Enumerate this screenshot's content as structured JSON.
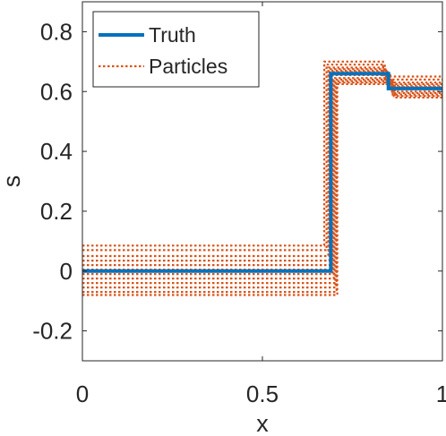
{
  "chart_data": {
    "type": "line",
    "title": "",
    "xlabel": "x",
    "ylabel": "s",
    "xlim": [
      0,
      1
    ],
    "ylim": [
      -0.3,
      0.9
    ],
    "x_ticks": [
      0,
      0.5,
      1
    ],
    "x_tick_labels": [
      "0",
      "0.5",
      "1"
    ],
    "y_ticks": [
      -0.2,
      0,
      0.2,
      0.4,
      0.6,
      0.8
    ],
    "y_tick_labels": [
      "-0.2",
      "0",
      "0.2",
      "0.4",
      "0.6",
      "0.8"
    ],
    "grid": false,
    "legend_position": "top-left",
    "legend": [
      {
        "label": "Truth",
        "style": "solid",
        "color": "#0072BD"
      },
      {
        "label": "Particles",
        "style": "dotted",
        "color": "#D95319"
      }
    ],
    "truth": {
      "name": "Truth",
      "color": "#0072BD",
      "x": [
        0,
        0.69,
        0.69,
        0.85,
        0.85,
        1
      ],
      "y": [
        0,
        0,
        0.66,
        0.66,
        0.61,
        0.61
      ]
    },
    "particles": {
      "name": "Particles",
      "color": "#D95319",
      "series": [
        {
          "x": [
            0,
            0.672,
            0.672,
            0.835,
            0.835,
            1
          ],
          "y": [
            0.085,
            0.085,
            0.7,
            0.7,
            0.65,
            0.65
          ]
        },
        {
          "x": [
            0,
            0.678,
            0.678,
            0.84,
            0.84,
            1
          ],
          "y": [
            0.07,
            0.07,
            0.69,
            0.69,
            0.64,
            0.64
          ]
        },
        {
          "x": [
            0,
            0.683,
            0.683,
            0.842,
            0.842,
            1
          ],
          "y": [
            0.05,
            0.05,
            0.68,
            0.68,
            0.63,
            0.63
          ]
        },
        {
          "x": [
            0,
            0.686,
            0.686,
            0.845,
            0.845,
            1
          ],
          "y": [
            0.035,
            0.035,
            0.675,
            0.675,
            0.625,
            0.625
          ]
        },
        {
          "x": [
            0,
            0.688,
            0.688,
            0.848,
            0.848,
            1
          ],
          "y": [
            0.02,
            0.02,
            0.67,
            0.67,
            0.62,
            0.62
          ]
        },
        {
          "x": [
            0,
            0.692,
            0.692,
            0.852,
            0.852,
            1
          ],
          "y": [
            0.005,
            0.005,
            0.665,
            0.665,
            0.615,
            0.615
          ]
        },
        {
          "x": [
            0,
            0.695,
            0.695,
            0.855,
            0.855,
            1
          ],
          "y": [
            -0.01,
            -0.01,
            0.655,
            0.655,
            0.61,
            0.61
          ]
        },
        {
          "x": [
            0,
            0.698,
            0.698,
            0.858,
            0.858,
            1
          ],
          "y": [
            -0.025,
            -0.025,
            0.645,
            0.645,
            0.6,
            0.6
          ]
        },
        {
          "x": [
            0,
            0.7,
            0.7,
            0.86,
            0.86,
            1
          ],
          "y": [
            -0.04,
            -0.04,
            0.64,
            0.64,
            0.595,
            0.595
          ]
        },
        {
          "x": [
            0,
            0.703,
            0.703,
            0.862,
            0.862,
            1
          ],
          "y": [
            -0.055,
            -0.055,
            0.635,
            0.635,
            0.59,
            0.59
          ]
        },
        {
          "x": [
            0,
            0.706,
            0.706,
            0.865,
            0.865,
            1
          ],
          "y": [
            -0.07,
            -0.07,
            0.63,
            0.63,
            0.585,
            0.585
          ]
        },
        {
          "x": [
            0,
            0.708,
            0.708,
            0.868,
            0.868,
            1
          ],
          "y": [
            -0.08,
            -0.08,
            0.625,
            0.625,
            0.58,
            0.58
          ]
        }
      ]
    }
  }
}
